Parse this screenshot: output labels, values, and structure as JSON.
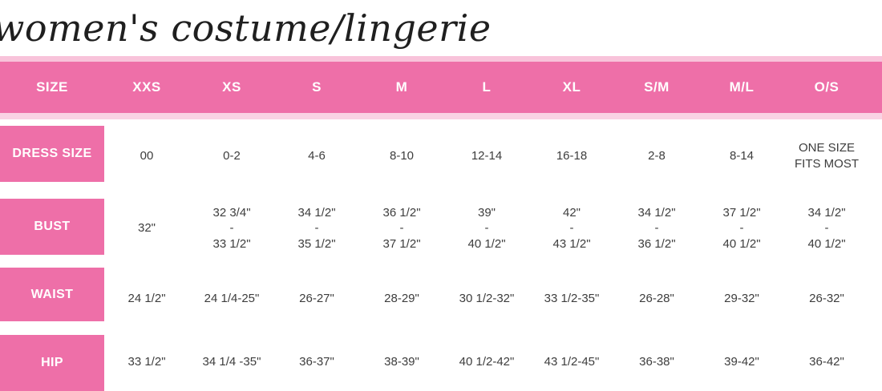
{
  "title": "women's costume/lingerie",
  "colors": {
    "header_pink": "#ee6fa8",
    "light_pink_border_top": "#f8c3da",
    "light_pink_border_bottom": "#f9d3e4",
    "title_text": "#1f1f1f",
    "cell_text": "#3d3d3d",
    "header_text": "#ffffff"
  },
  "chart_data": {
    "type": "table",
    "title": "women's costume/lingerie",
    "columns": [
      "SIZE",
      "XXS",
      "XS",
      "S",
      "M",
      "L",
      "XL",
      "S/M",
      "M/L",
      "O/S"
    ],
    "rows": [
      {
        "label": "DRESS SIZE",
        "values": [
          "00",
          "0-2",
          "4-6",
          "8-10",
          "12-14",
          "16-18",
          "2-8",
          "8-14",
          "ONE SIZE\nFITS MOST"
        ]
      },
      {
        "label": "BUST",
        "values": [
          "32\"",
          "32 3/4\"\n-\n33 1/2\"",
          "34 1/2\"\n-\n35 1/2\"",
          "36 1/2\"\n-\n37 1/2\"",
          "39\"\n-\n40 1/2\"",
          "42\"\n-\n43 1/2\"",
          "34 1/2\"\n-\n36 1/2\"",
          "37 1/2\"\n-\n40 1/2\"",
          "34 1/2\"\n-\n40 1/2\""
        ]
      },
      {
        "label": "WAIST",
        "values": [
          "24 1/2\"",
          "24 1/4-25\"",
          "26-27\"",
          "28-29\"",
          "30 1/2-32\"",
          "33 1/2-35\"",
          "26-28\"",
          "29-32\"",
          "26-32\""
        ]
      },
      {
        "label": "HIP",
        "values": [
          "33 1/2\"",
          "34 1/4 -35\"",
          "36-37\"",
          "38-39\"",
          "40 1/2-42\"",
          "43 1/2-45\"",
          "36-38\"",
          "39-42\"",
          "36-42\""
        ]
      }
    ]
  }
}
